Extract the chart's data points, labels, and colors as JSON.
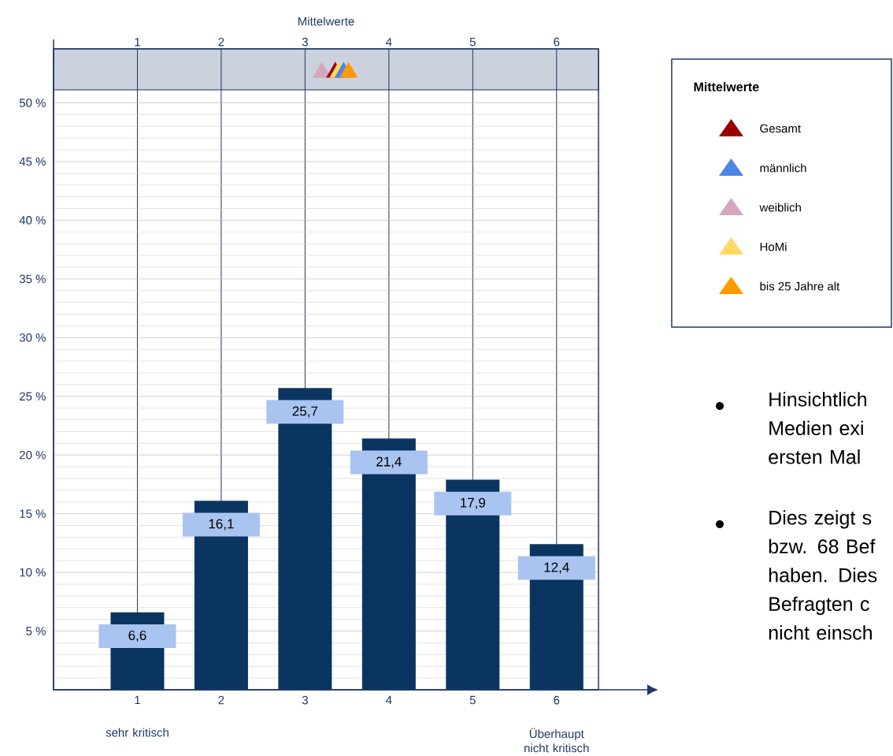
{
  "chart_data": {
    "type": "bar",
    "categories": [
      "1",
      "2",
      "3",
      "4",
      "5",
      "6"
    ],
    "x2label": "Mittelwerte",
    "x2lim": [
      0,
      6.5
    ],
    "x2ticks": [
      1,
      2,
      3,
      4,
      5,
      6
    ],
    "ylim": [
      0,
      54.6
    ],
    "yticks": [
      {
        "value": 0,
        "label": null
      },
      {
        "value": 5,
        "label": "5 %"
      },
      {
        "value": 10,
        "label": "10 %"
      },
      {
        "value": 15,
        "label": "15 %"
      },
      {
        "value": 20,
        "label": "20 %"
      },
      {
        "value": 25,
        "label": "25 %"
      },
      {
        "value": 30,
        "label": "30 %"
      },
      {
        "value": 35,
        "label": "35 %"
      },
      {
        "value": 40,
        "label": "40 %"
      },
      {
        "value": 45,
        "label": "45 %"
      },
      {
        "value": 50,
        "label": "50 %"
      }
    ],
    "grid": true,
    "legend": "right",
    "legend_title": "Mittelwerte",
    "marker": "triangle",
    "bands": [
      {
        "axis": "y",
        "from": 51.1,
        "to": 54.6,
        "color": "#cbd1dd"
      }
    ],
    "series": [
      {
        "color": "#0a3560",
        "values": [
          6.6,
          16.1,
          25.7,
          21.4,
          17.9,
          12.4
        ],
        "value_labels": [
          "6,6",
          "16,1",
          "25,7",
          "21,4",
          "17,9",
          "12,4"
        ]
      },
      {
        "name": "Gesamt",
        "type": "scatter",
        "axis": "x2",
        "color": "#990000",
        "x": [
          3.36
        ],
        "values": [
          52.6
        ]
      },
      {
        "name": "männlich",
        "type": "scatter",
        "axis": "x2",
        "color": "#4a86e8",
        "x": [
          3.46
        ],
        "values": [
          52.6
        ]
      },
      {
        "name": "weiblich",
        "type": "scatter",
        "axis": "x2",
        "color": "#d5a6bd",
        "x": [
          3.2
        ],
        "values": [
          52.6
        ]
      },
      {
        "name": "HoMi",
        "type": "scatter",
        "axis": "x2",
        "color": "#ffd966",
        "x": [
          3.4
        ],
        "values": [
          52.6
        ]
      },
      {
        "name": "bis 25 Jahre alt",
        "type": "scatter",
        "axis": "x2",
        "color": "#ff9900",
        "x": [
          3.52
        ],
        "values": [
          52.6
        ]
      }
    ],
    "annotations": [
      "sehr kritisch",
      "Überhaupt nicht kritisch",
      "Hinsichtlich Medien exi ersten Mal",
      "Dies zeigt s bzw. 68 Bef haben. Dies Befragten c nicht einsch"
    ]
  }
}
